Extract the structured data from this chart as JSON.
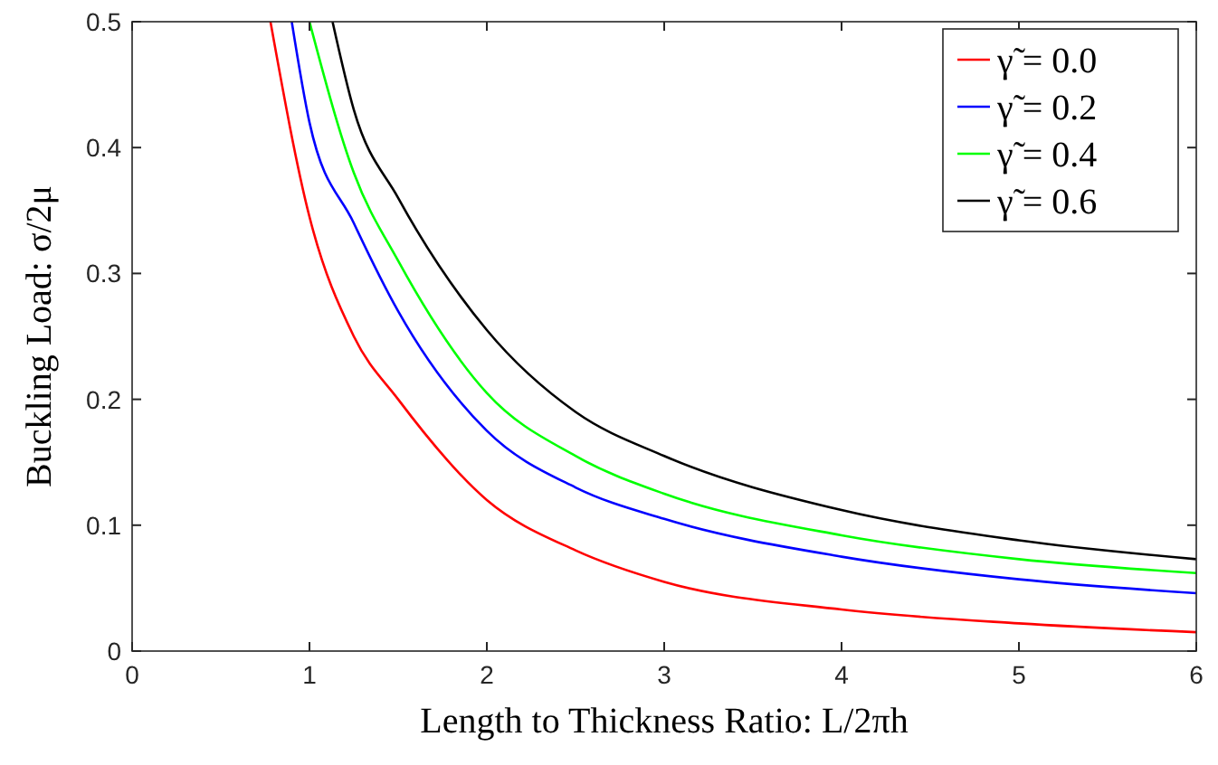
{
  "chart_data": {
    "type": "line",
    "xlabel": "Length to Thickness Ratio: L/2πh",
    "ylabel": "Buckling Load: σ/2μ",
    "xlim": [
      0,
      6
    ],
    "ylim": [
      0,
      0.5
    ],
    "xticks": [
      0,
      1,
      2,
      3,
      4,
      5,
      6
    ],
    "yticks": [
      0,
      0.1,
      0.2,
      0.3,
      0.4,
      0.5
    ],
    "legend": "top right",
    "grid": false,
    "marker": "none",
    "line_style": "solid",
    "series": [
      {
        "name": "γ̃ = 0.0",
        "color": "#ff0000",
        "x": [
          0.78,
          1,
          1.25,
          1.5,
          2,
          2.5,
          3,
          4,
          5,
          6
        ],
        "values": [
          0.5,
          0.345,
          0.25,
          0.2,
          0.12,
          0.08,
          0.055,
          0.033,
          0.022,
          0.015
        ]
      },
      {
        "name": "γ̃ = 0.2",
        "color": "#0000ff",
        "x": [
          0.9,
          1,
          1.25,
          1.5,
          2,
          2.5,
          3,
          4,
          5,
          6
        ],
        "values": [
          0.5,
          0.42,
          0.34,
          0.27,
          0.175,
          0.13,
          0.105,
          0.075,
          0.057,
          0.046
        ]
      },
      {
        "name": "γ̃ = 0.4",
        "color": "#00ff00",
        "x": [
          1,
          1.25,
          1.5,
          2,
          2.5,
          3,
          4,
          5,
          6
        ],
        "values": [
          0.5,
          0.38,
          0.31,
          0.205,
          0.155,
          0.125,
          0.092,
          0.073,
          0.062
        ]
      },
      {
        "name": "γ̃ = 0.6",
        "color": "#000000",
        "x": [
          1.13,
          1.25,
          1.5,
          2,
          2.5,
          3,
          4,
          5,
          6
        ],
        "values": [
          0.5,
          0.43,
          0.36,
          0.255,
          0.19,
          0.155,
          0.112,
          0.088,
          0.073
        ]
      }
    ]
  }
}
